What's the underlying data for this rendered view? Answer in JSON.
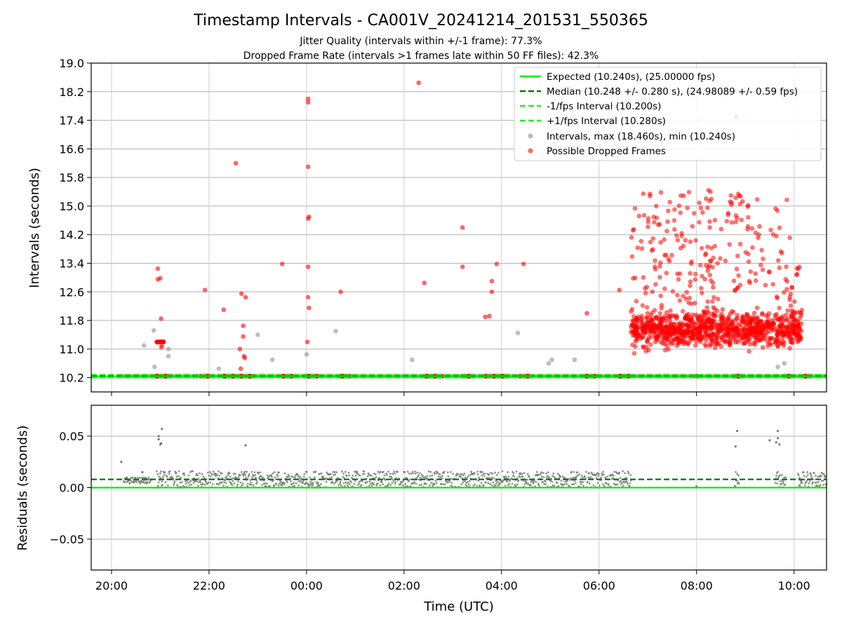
{
  "chart_data": [
    {
      "type": "scatter",
      "title": "Timestamp Intervals - CA001V_20241214_201531_550365",
      "subtitle_lines": [
        "Jitter Quality (intervals within +/-1 frame): 77.3%",
        "Dropped Frame Rate (intervals >1 frames late within 50 FF files): 42.3%"
      ],
      "xlabel": "",
      "ylabel": "Intervals (seconds)",
      "xlim": [
        "2024-12-14 19:35",
        "2024-12-15 10:40"
      ],
      "ylim": [
        9.8,
        19.0
      ],
      "yticks": [
        10.2,
        11.0,
        11.8,
        12.6,
        13.4,
        14.2,
        15.0,
        15.8,
        16.6,
        17.4,
        18.2,
        19.0
      ],
      "ytick_labels": [
        "10.2",
        "11.0",
        "11.8",
        "12.6",
        "13.4",
        "14.2",
        "15.0",
        "15.8",
        "16.6",
        "17.4",
        "18.2",
        "19.0"
      ],
      "grid": "horizontal",
      "legend_position": "top-right",
      "reference_lines": [
        {
          "name": "Expected (10.240s), (25.00000 fps)",
          "y": 10.24,
          "style": "solid",
          "color": "#00ee00"
        },
        {
          "name": "Median (10.248 +/- 0.280 s), (24.98089 +/- 0.59 fps)",
          "y": 10.248,
          "style": "dashed",
          "color": "#007a00"
        },
        {
          "name": "-1/fps Interval (10.200s)",
          "y": 10.2,
          "style": "dashed",
          "color": "#22ee22"
        },
        {
          "name": "+1/fps Interval (10.280s)",
          "y": 10.28,
          "style": "dashed",
          "color": "#22ee22"
        }
      ],
      "series": [
        {
          "name": "Intervals, max (18.460s), min (10.240s)",
          "color": "#888888",
          "points": [
            {
              "x": "2024-12-14 20:12",
              "y": 10.24
            },
            {
              "x": "2024-12-14 20:40",
              "y": 11.1
            },
            {
              "x": "2024-12-14 20:52",
              "y": 11.52
            },
            {
              "x": "2024-12-14 20:53",
              "y": 10.5
            },
            {
              "x": "2024-12-14 21:10",
              "y": 11.0
            },
            {
              "x": "2024-12-14 21:10",
              "y": 10.8
            },
            {
              "x": "2024-12-14 22:12",
              "y": 10.45
            },
            {
              "x": "2024-12-14 23:00",
              "y": 11.4
            },
            {
              "x": "2024-12-14 23:18",
              "y": 10.7
            },
            {
              "x": "2024-12-15 00:00",
              "y": 10.85
            },
            {
              "x": "2024-12-15 00:36",
              "y": 11.5
            },
            {
              "x": "2024-12-15 02:10",
              "y": 10.7
            },
            {
              "x": "2024-12-15 04:20",
              "y": 11.45
            },
            {
              "x": "2024-12-15 04:58",
              "y": 10.6
            },
            {
              "x": "2024-12-15 05:02",
              "y": 10.7
            },
            {
              "x": "2024-12-15 05:30",
              "y": 10.7
            },
            {
              "x": "2024-12-15 09:40",
              "y": 10.5
            },
            {
              "x": "2024-12-15 09:48",
              "y": 10.6
            }
          ]
        },
        {
          "name": "Possible Dropped Frames",
          "color": "#ff0000",
          "points": [
            {
              "x": "2024-12-14 20:57",
              "y": 13.25
            },
            {
              "x": "2024-12-14 20:57",
              "y": 12.95
            },
            {
              "x": "2024-12-14 21:00",
              "y": 12.98
            },
            {
              "x": "2024-12-14 21:01",
              "y": 11.85
            },
            {
              "x": "2024-12-14 21:55",
              "y": 12.65
            },
            {
              "x": "2024-12-14 22:18",
              "y": 12.1
            },
            {
              "x": "2024-12-14 22:33",
              "y": 16.2
            },
            {
              "x": "2024-12-14 22:40",
              "y": 12.55
            },
            {
              "x": "2024-12-14 22:42",
              "y": 11.65
            },
            {
              "x": "2024-12-14 22:45",
              "y": 12.45
            },
            {
              "x": "2024-12-14 22:42",
              "y": 11.35
            },
            {
              "x": "2024-12-14 22:38",
              "y": 11.0
            },
            {
              "x": "2024-12-14 22:43",
              "y": 10.8
            },
            {
              "x": "2024-12-14 22:44",
              "y": 10.75
            },
            {
              "x": "2024-12-14 22:39",
              "y": 10.45
            },
            {
              "x": "2024-12-14 23:30",
              "y": 13.38
            },
            {
              "x": "2024-12-15 00:02",
              "y": 18.0
            },
            {
              "x": "2024-12-15 00:02",
              "y": 17.9
            },
            {
              "x": "2024-12-15 00:02",
              "y": 16.1
            },
            {
              "x": "2024-12-15 00:03",
              "y": 14.7
            },
            {
              "x": "2024-12-15 00:02",
              "y": 14.65
            },
            {
              "x": "2024-12-15 00:02",
              "y": 13.3
            },
            {
              "x": "2024-12-15 00:02",
              "y": 12.45
            },
            {
              "x": "2024-12-15 00:03",
              "y": 12.15
            },
            {
              "x": "2024-12-15 00:01",
              "y": 11.2
            },
            {
              "x": "2024-12-15 00:42",
              "y": 12.6
            },
            {
              "x": "2024-12-15 02:18",
              "y": 18.45
            },
            {
              "x": "2024-12-15 02:25",
              "y": 12.85
            },
            {
              "x": "2024-12-15 03:12",
              "y": 14.4
            },
            {
              "x": "2024-12-15 03:12",
              "y": 13.3
            },
            {
              "x": "2024-12-15 03:40",
              "y": 11.9
            },
            {
              "x": "2024-12-15 03:45",
              "y": 11.92
            },
            {
              "x": "2024-12-15 03:48",
              "y": 12.9
            },
            {
              "x": "2024-12-15 03:48",
              "y": 12.6
            },
            {
              "x": "2024-12-15 03:54",
              "y": 13.38
            },
            {
              "x": "2024-12-15 04:27",
              "y": 13.38
            },
            {
              "x": "2024-12-15 05:45",
              "y": 12.0
            },
            {
              "x": "2024-12-15 06:25",
              "y": 12.65
            },
            {
              "x": "2024-12-15 08:49",
              "y": 17.5
            },
            {
              "x": "2024-12-15 08:00",
              "y": 10.24
            },
            {
              "x": "2024-12-15 08:50",
              "y": 10.24
            }
          ]
        }
      ],
      "dense_dropped_clusters": [
        {
          "x_from": "2024-12-14 20:55",
          "x_to": "2024-12-14 21:05",
          "y_min": 10.3,
          "y_max": 11.2,
          "count": 40
        },
        {
          "x_from": "2024-12-15 06:40",
          "x_to": "2024-12-15 07:35",
          "y_min": 10.6,
          "y_max": 15.4,
          "count": 320
        },
        {
          "x_from": "2024-12-15 07:35",
          "x_to": "2024-12-15 08:20",
          "y_min": 10.6,
          "y_max": 15.5,
          "count": 300
        },
        {
          "x_from": "2024-12-15 08:20",
          "x_to": "2024-12-15 09:05",
          "y_min": 10.6,
          "y_max": 15.4,
          "count": 240
        },
        {
          "x_from": "2024-12-15 09:05",
          "x_to": "2024-12-15 09:55",
          "y_min": 10.6,
          "y_max": 15.3,
          "count": 260
        },
        {
          "x_from": "2024-12-15 09:55",
          "x_to": "2024-12-15 10:10",
          "y_min": 10.4,
          "y_max": 13.3,
          "count": 90
        }
      ],
      "baseline_dropped_runs": [
        {
          "from": "2024-12-14 20:53",
          "to": "2024-12-14 21:13"
        },
        {
          "from": "2024-12-14 21:50",
          "to": "2024-12-14 22:00"
        },
        {
          "from": "2024-12-14 22:17",
          "to": "2024-12-14 22:33"
        },
        {
          "from": "2024-12-14 22:35",
          "to": "2024-12-14 22:55"
        },
        {
          "from": "2024-12-14 23:30",
          "to": "2024-12-14 23:42"
        },
        {
          "from": "2024-12-14 23:58",
          "to": "2024-12-15 00:13"
        },
        {
          "from": "2024-12-15 00:40",
          "to": "2024-12-15 00:53"
        },
        {
          "from": "2024-12-15 02:25",
          "to": "2024-12-15 02:47"
        },
        {
          "from": "2024-12-15 03:12",
          "to": "2024-12-15 03:25"
        },
        {
          "from": "2024-12-15 03:40",
          "to": "2024-12-15 04:08"
        },
        {
          "from": "2024-12-15 04:23",
          "to": "2024-12-15 04:35"
        },
        {
          "from": "2024-12-15 05:43",
          "to": "2024-12-15 05:55"
        },
        {
          "from": "2024-12-15 06:23",
          "to": "2024-12-15 06:37"
        },
        {
          "from": "2024-12-15 08:45",
          "to": "2024-12-15 08:57"
        },
        {
          "from": "2024-12-15 09:48",
          "to": "2024-12-15 09:57"
        },
        {
          "from": "2024-12-15 10:10",
          "to": "2024-12-15 10:20"
        }
      ]
    },
    {
      "type": "scatter",
      "xlabel": "Time (UTC)",
      "ylabel": "Residuals (seconds)",
      "xlim": [
        "2024-12-14 19:35",
        "2024-12-15 10:40"
      ],
      "xticks": [
        "2024-12-14 20:00",
        "2024-12-14 22:00",
        "2024-12-15 00:00",
        "2024-12-15 02:00",
        "2024-12-15 04:00",
        "2024-12-15 06:00",
        "2024-12-15 08:00",
        "2024-12-15 10:00"
      ],
      "xtick_labels": [
        "20:00",
        "22:00",
        "00:00",
        "02:00",
        "04:00",
        "06:00",
        "08:00",
        "10:00"
      ],
      "ylim": [
        -0.08,
        0.08
      ],
      "yticks": [
        -0.05,
        0.0,
        0.05
      ],
      "ytick_labels": [
        "−0.05",
        "0.00",
        "0.05"
      ],
      "grid": "both",
      "reference_lines": [
        {
          "name": "Expected",
          "y": 0.0,
          "style": "solid",
          "color": "#00ee00"
        },
        {
          "name": "Median",
          "y": 0.008,
          "style": "dashed",
          "color": "#007a00"
        }
      ],
      "series": [
        {
          "name": "Residuals",
          "color": "#777777",
          "bands": [
            {
              "from": "2024-12-14 20:15",
              "to": "2024-12-14 20:50",
              "y_min": 0.004,
              "y_max": 0.01
            },
            {
              "from": "2024-12-14 20:55",
              "to": "2024-12-15 06:40",
              "y_min": 0.0,
              "y_max": 0.016
            },
            {
              "from": "2024-12-15 08:47",
              "to": "2024-12-15 08:53",
              "y_min": 0.001,
              "y_max": 0.016
            },
            {
              "from": "2024-12-15 09:37",
              "to": "2024-12-15 09:50",
              "y_min": 0.0,
              "y_max": 0.016
            },
            {
              "from": "2024-12-15 10:05",
              "to": "2024-12-15 10:40",
              "y_min": 0.0,
              "y_max": 0.016
            }
          ],
          "outliers": [
            {
              "x": "2024-12-14 20:12",
              "y": 0.025
            },
            {
              "x": "2024-12-14 20:38",
              "y": 0.015
            },
            {
              "x": "2024-12-14 20:58",
              "y": 0.05
            },
            {
              "x": "2024-12-14 20:58",
              "y": 0.047
            },
            {
              "x": "2024-12-14 21:00",
              "y": 0.042
            },
            {
              "x": "2024-12-14 21:01",
              "y": 0.043
            },
            {
              "x": "2024-12-14 21:02",
              "y": 0.057
            },
            {
              "x": "2024-12-14 22:45",
              "y": 0.041
            },
            {
              "x": "2024-12-15 08:00",
              "y": 0.001
            },
            {
              "x": "2024-12-15 08:48",
              "y": 0.04
            },
            {
              "x": "2024-12-15 08:50",
              "y": 0.055
            },
            {
              "x": "2024-12-15 09:30",
              "y": 0.046
            },
            {
              "x": "2024-12-15 09:38",
              "y": 0.044
            },
            {
              "x": "2024-12-15 09:40",
              "y": 0.048
            },
            {
              "x": "2024-12-15 09:40",
              "y": 0.055
            },
            {
              "x": "2024-12-15 09:42",
              "y": 0.042
            }
          ]
        }
      ]
    }
  ]
}
